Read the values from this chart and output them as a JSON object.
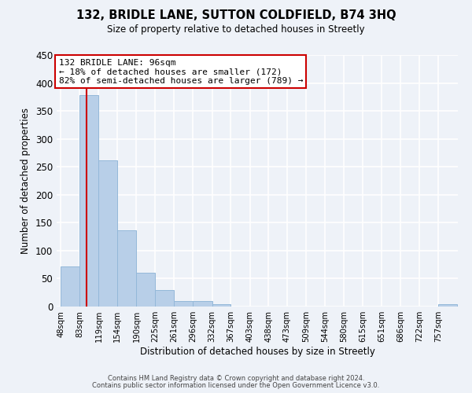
{
  "title": "132, BRIDLE LANE, SUTTON COLDFIELD, B74 3HQ",
  "subtitle": "Size of property relative to detached houses in Streetly",
  "xlabel": "Distribution of detached houses by size in Streetly",
  "ylabel": "Number of detached properties",
  "bar_values": [
    72,
    378,
    262,
    137,
    60,
    29,
    10,
    10,
    4,
    0,
    0,
    0,
    0,
    0,
    0,
    0,
    0,
    0,
    0,
    0,
    4
  ],
  "bin_edges": [
    48,
    83,
    119,
    154,
    190,
    225,
    261,
    296,
    332,
    367,
    403,
    438,
    473,
    509,
    544,
    580,
    615,
    651,
    686,
    722,
    757
  ],
  "tick_labels": [
    "48sqm",
    "83sqm",
    "119sqm",
    "154sqm",
    "190sqm",
    "225sqm",
    "261sqm",
    "296sqm",
    "332sqm",
    "367sqm",
    "403sqm",
    "438sqm",
    "473sqm",
    "509sqm",
    "544sqm",
    "580sqm",
    "615sqm",
    "651sqm",
    "686sqm",
    "722sqm",
    "757sqm"
  ],
  "bar_color": "#b8cfe8",
  "bar_edge_color": "#94b8d9",
  "property_line_x": 96,
  "property_line_color": "#cc0000",
  "annotation_title": "132 BRIDLE LANE: 96sqm",
  "annotation_line1": "← 18% of detached houses are smaller (172)",
  "annotation_line2": "82% of semi-detached houses are larger (789) →",
  "annotation_box_color": "#ffffff",
  "annotation_box_edge": "#cc0000",
  "ylim": [
    0,
    450
  ],
  "yticks": [
    0,
    50,
    100,
    150,
    200,
    250,
    300,
    350,
    400,
    450
  ],
  "footer1": "Contains HM Land Registry data © Crown copyright and database right 2024.",
  "footer2": "Contains public sector information licensed under the Open Government Licence v3.0.",
  "bg_color": "#eef2f8",
  "grid_color": "#ffffff"
}
